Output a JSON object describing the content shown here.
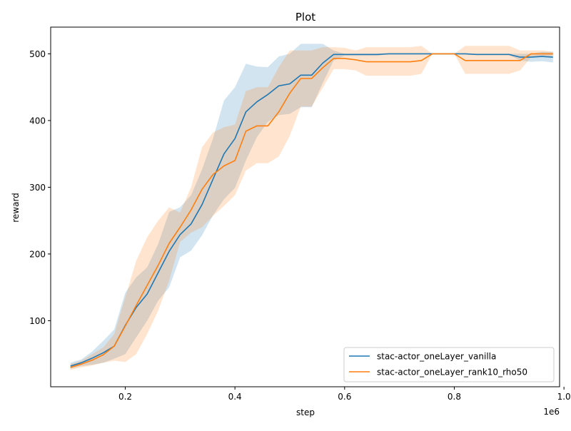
{
  "chart_data": {
    "type": "line",
    "title": "Plot",
    "xlabel": "step",
    "ylabel": "reward",
    "x_offset_label": "1e6",
    "xlim": [
      0.064,
      0.992
    ],
    "ylim": [
      1,
      540
    ],
    "x_ticks": [
      0.2,
      0.4,
      0.6,
      0.8,
      1.0
    ],
    "x_tick_labels": [
      "0.2",
      "0.4",
      "0.6",
      "0.8",
      "1.0"
    ],
    "y_ticks": [
      100,
      200,
      300,
      400,
      500
    ],
    "y_tick_labels": [
      "100",
      "200",
      "300",
      "400",
      "500"
    ],
    "grid": false,
    "legend_position": "lower-right",
    "series": [
      {
        "name": "stac-actor_oneLayer_vanilla",
        "color": "#1f77b4",
        "x": [
          0.1,
          0.12,
          0.14,
          0.16,
          0.18,
          0.2,
          0.22,
          0.24,
          0.26,
          0.28,
          0.3,
          0.32,
          0.34,
          0.36,
          0.38,
          0.4,
          0.42,
          0.44,
          0.46,
          0.48,
          0.5,
          0.52,
          0.54,
          0.56,
          0.58,
          0.6,
          0.62,
          0.64,
          0.66,
          0.68,
          0.7,
          0.72,
          0.74,
          0.76,
          0.78,
          0.8,
          0.82,
          0.84,
          0.86,
          0.88,
          0.9,
          0.92,
          0.94,
          0.96,
          0.98
        ],
        "y": [
          32,
          37,
          44,
          52,
          62,
          93,
          120,
          140,
          172,
          204,
          229,
          245,
          274,
          312,
          350,
          373,
          413,
          428,
          439,
          452,
          455,
          468,
          468,
          486,
          499,
          499,
          499,
          499,
          499,
          500,
          500,
          500,
          500,
          500,
          500,
          500,
          500,
          499,
          499,
          499,
          499,
          495,
          495,
          496,
          495
        ],
        "upper": [
          37,
          42,
          54,
          70,
          87,
          142,
          165,
          180,
          215,
          263,
          270,
          288,
          327,
          373,
          430,
          450,
          485,
          481,
          480,
          496,
          500,
          515,
          515,
          515,
          505,
          500,
          500,
          500,
          500,
          500,
          500,
          500,
          500,
          500,
          500,
          500,
          500,
          500,
          500,
          500,
          500,
          500,
          500,
          503,
          503
        ],
        "lower": [
          28,
          32,
          34,
          37,
          43,
          50,
          75,
          100,
          130,
          150,
          195,
          205,
          228,
          258,
          282,
          299,
          340,
          375,
          398,
          408,
          410,
          420,
          420,
          456,
          490,
          497,
          497,
          497,
          497,
          500,
          500,
          500,
          500,
          500,
          500,
          500,
          500,
          498,
          498,
          498,
          498,
          490,
          488,
          489,
          487
        ]
      },
      {
        "name": "stac-actor_oneLayer_rank10_rho50",
        "color": "#ff7f0e",
        "x": [
          0.1,
          0.12,
          0.14,
          0.16,
          0.18,
          0.2,
          0.22,
          0.24,
          0.26,
          0.28,
          0.3,
          0.32,
          0.34,
          0.36,
          0.38,
          0.4,
          0.42,
          0.44,
          0.46,
          0.48,
          0.5,
          0.52,
          0.54,
          0.56,
          0.58,
          0.6,
          0.62,
          0.64,
          0.66,
          0.68,
          0.7,
          0.72,
          0.74,
          0.76,
          0.78,
          0.8,
          0.82,
          0.84,
          0.86,
          0.88,
          0.9,
          0.92,
          0.94,
          0.96,
          0.98
        ],
        "y": [
          30,
          35,
          41,
          49,
          62,
          92,
          123,
          153,
          183,
          216,
          240,
          266,
          297,
          319,
          332,
          340,
          384,
          392,
          392,
          413,
          441,
          463,
          463,
          479,
          493,
          493,
          491,
          488,
          488,
          488,
          488,
          488,
          490,
          500,
          500,
          500,
          490,
          490,
          490,
          490,
          490,
          490,
          500,
          500,
          500
        ],
        "upper": [
          35,
          40,
          50,
          60,
          80,
          135,
          190,
          225,
          250,
          270,
          262,
          300,
          360,
          382,
          390,
          394,
          444,
          450,
          450,
          480,
          505,
          505,
          505,
          510,
          510,
          509,
          505,
          510,
          510,
          510,
          510,
          510,
          512,
          500,
          500,
          500,
          512,
          512,
          512,
          512,
          512,
          505,
          505,
          505,
          503
        ],
        "lower": [
          26,
          30,
          33,
          37,
          40,
          38,
          50,
          80,
          115,
          160,
          218,
          232,
          240,
          257,
          272,
          288,
          325,
          336,
          336,
          346,
          377,
          421,
          421,
          449,
          477,
          477,
          475,
          467,
          467,
          467,
          467,
          467,
          470,
          500,
          500,
          500,
          470,
          470,
          470,
          470,
          470,
          475,
          495,
          495,
          497
        ]
      }
    ]
  }
}
